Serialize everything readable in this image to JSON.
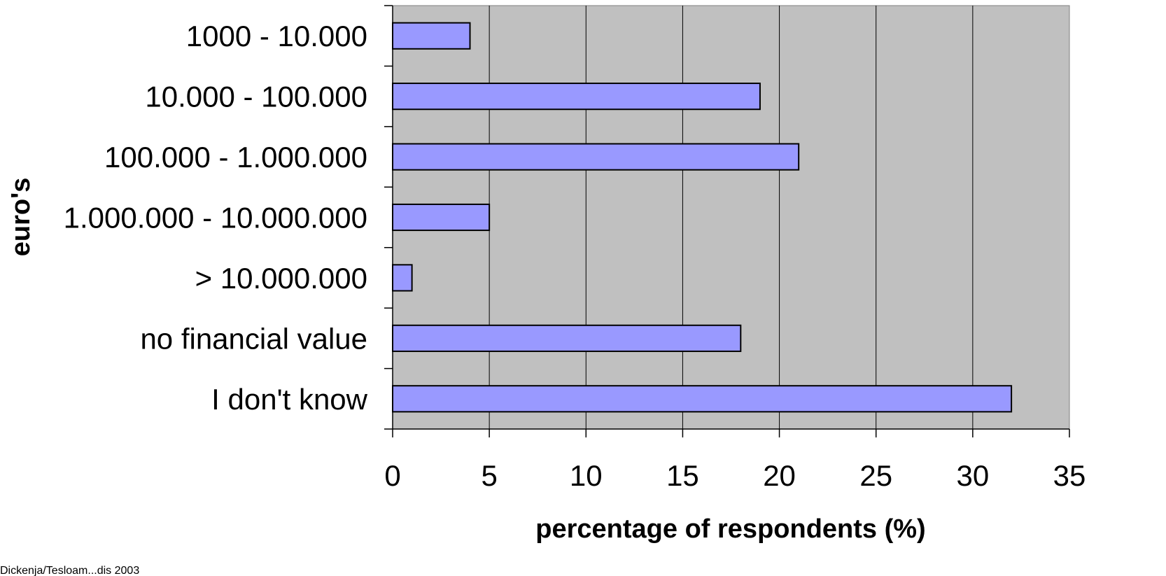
{
  "chart_data": {
    "type": "bar",
    "orientation": "horizontal",
    "categories": [
      "1000 - 10.000",
      "10.000 - 100.000",
      "100.000 - 1.000.000",
      "1.000.000 - 10.000.000",
      "> 10.000.000",
      "no financial value",
      "I don't know"
    ],
    "values": [
      4,
      19,
      21,
      5,
      1,
      18,
      32
    ],
    "xlabel": "percentage of respondents (%)",
    "ylabel": "euro's",
    "xlim": [
      0,
      35
    ],
    "xticks": [
      0,
      5,
      10,
      15,
      20,
      25,
      30,
      35
    ],
    "grid": "vertical",
    "legend": "none",
    "colors": {
      "bar_fill": "#9999ff",
      "bar_stroke": "#000000",
      "plot_background": "#c0c0c0",
      "gridline": "#000000"
    }
  },
  "source_note": "Dickenja/Tesloam...dis 2003"
}
